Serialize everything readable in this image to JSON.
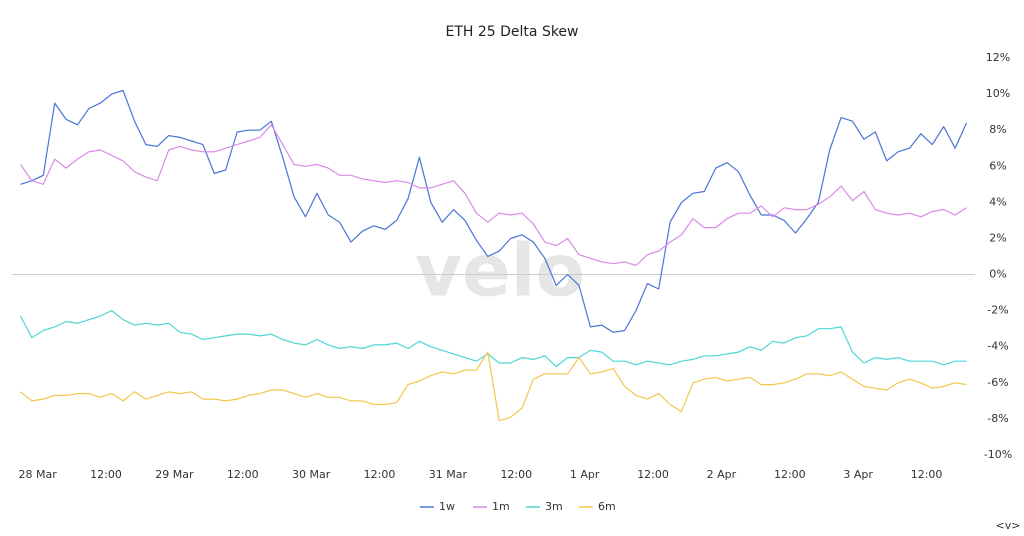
{
  "chart_data": {
    "type": "line",
    "title": "ETH 25 Delta Skew",
    "watermark": "velo",
    "nav_label": "<v>",
    "x": [
      -3,
      -1,
      1,
      3,
      5,
      7,
      9,
      11,
      13,
      15,
      17,
      19,
      21,
      23,
      25,
      27,
      29,
      31,
      33,
      35,
      37,
      39,
      41,
      43,
      45,
      47,
      49,
      51,
      53,
      55,
      57,
      59,
      61,
      63,
      65,
      67,
      69,
      71,
      73,
      75,
      77,
      79,
      81,
      83,
      85,
      87,
      89,
      91,
      93,
      95,
      97,
      99,
      101,
      103,
      105,
      107,
      109,
      111,
      113,
      115,
      117,
      119,
      121,
      123,
      125,
      127,
      129,
      131,
      133,
      135,
      137,
      139,
      141,
      143,
      145,
      147,
      149,
      151,
      153,
      155,
      157,
      159,
      161,
      163
    ],
    "xlim": [
      -4.5,
      164.5
    ],
    "xticks": [
      {
        "value": 0,
        "label": "28 Mar"
      },
      {
        "value": 12,
        "label": "12:00"
      },
      {
        "value": 24,
        "label": "29 Mar"
      },
      {
        "value": 36,
        "label": "12:00"
      },
      {
        "value": 48,
        "label": "30 Mar"
      },
      {
        "value": 60,
        "label": "12:00"
      },
      {
        "value": 72,
        "label": "31 Mar"
      },
      {
        "value": 84,
        "label": "12:00"
      },
      {
        "value": 96,
        "label": "1 Apr"
      },
      {
        "value": 108,
        "label": "12:00"
      },
      {
        "value": 120,
        "label": "2 Apr"
      },
      {
        "value": 132,
        "label": "12:00"
      },
      {
        "value": 144,
        "label": "3 Apr"
      },
      {
        "value": 156,
        "label": "12:00"
      }
    ],
    "ylim": [
      -10,
      12
    ],
    "yticks": [
      {
        "value": -10,
        "label": "-10%"
      },
      {
        "value": -8,
        "label": "-8%"
      },
      {
        "value": -6,
        "label": "-6%"
      },
      {
        "value": -4,
        "label": "-4%"
      },
      {
        "value": -2,
        "label": "-2%"
      },
      {
        "value": 0,
        "label": "0%"
      },
      {
        "value": 2,
        "label": "2%"
      },
      {
        "value": 4,
        "label": "4%"
      },
      {
        "value": 6,
        "label": "6%"
      },
      {
        "value": 8,
        "label": "8%"
      },
      {
        "value": 10,
        "label": "10%"
      },
      {
        "value": 12,
        "label": "12%"
      }
    ],
    "zero_line": true,
    "legend": "bottom",
    "series": [
      {
        "name": "1w",
        "color": "#4a74d6",
        "values": [
          5.0,
          5.2,
          5.5,
          9.5,
          8.6,
          8.3,
          9.2,
          9.5,
          10.0,
          10.2,
          8.5,
          7.2,
          7.1,
          7.7,
          7.6,
          7.4,
          7.2,
          5.6,
          5.8,
          7.9,
          8.0,
          8.0,
          8.5,
          6.5,
          4.3,
          3.2,
          4.5,
          3.3,
          2.9,
          1.8,
          2.4,
          2.7,
          2.5,
          3.0,
          4.2,
          6.5,
          4.0,
          2.9,
          3.6,
          3.0,
          1.9,
          1.0,
          1.3,
          2.0,
          2.2,
          1.8,
          0.9,
          -0.6,
          0.0,
          -0.6,
          -2.9,
          -2.8,
          -3.2,
          -3.1,
          -2.0,
          -0.5,
          -0.8,
          2.9,
          4.0,
          4.5,
          4.6,
          5.9,
          6.2,
          5.7,
          4.4,
          3.3,
          3.3,
          3.0,
          2.3,
          3.1,
          4.0,
          6.9,
          8.7,
          8.5,
          7.5,
          7.9,
          6.3,
          6.8,
          7.0,
          7.8,
          7.2,
          8.2,
          7.0,
          8.4
        ]
      },
      {
        "name": "1m",
        "color": "#d98be8",
        "values": [
          6.1,
          5.2,
          5.0,
          6.4,
          5.9,
          6.4,
          6.8,
          6.9,
          6.6,
          6.3,
          5.7,
          5.4,
          5.2,
          6.9,
          7.1,
          6.9,
          6.8,
          6.8,
          7.0,
          7.2,
          7.4,
          7.6,
          8.3,
          7.2,
          6.1,
          6.0,
          6.1,
          5.9,
          5.5,
          5.5,
          5.3,
          5.2,
          5.1,
          5.2,
          5.1,
          4.8,
          4.8,
          5.0,
          5.2,
          4.5,
          3.4,
          2.9,
          3.4,
          3.3,
          3.4,
          2.8,
          1.8,
          1.6,
          2.0,
          1.1,
          0.9,
          0.7,
          0.6,
          0.7,
          0.5,
          1.1,
          1.3,
          1.8,
          2.2,
          3.1,
          2.6,
          2.6,
          3.1,
          3.4,
          3.4,
          3.8,
          3.2,
          3.7,
          3.6,
          3.6,
          3.9,
          4.3,
          4.9,
          4.1,
          4.6,
          3.6,
          3.4,
          3.3,
          3.4,
          3.2,
          3.5,
          3.6,
          3.3,
          3.7
        ]
      },
      {
        "name": "3m",
        "color": "#4fd6d6",
        "values": [
          -2.3,
          -3.5,
          -3.1,
          -2.9,
          -2.6,
          -2.7,
          -2.5,
          -2.3,
          -2.0,
          -2.5,
          -2.8,
          -2.7,
          -2.8,
          -2.7,
          -3.2,
          -3.3,
          -3.6,
          -3.5,
          -3.4,
          -3.3,
          -3.3,
          -3.4,
          -3.3,
          -3.6,
          -3.8,
          -3.9,
          -3.6,
          -3.9,
          -4.1,
          -4.0,
          -4.1,
          -3.9,
          -3.9,
          -3.8,
          -4.1,
          -3.7,
          -4.0,
          -4.2,
          -4.4,
          -4.6,
          -4.8,
          -4.4,
          -4.9,
          -4.9,
          -4.6,
          -4.7,
          -4.5,
          -5.1,
          -4.6,
          -4.6,
          -4.2,
          -4.3,
          -4.8,
          -4.8,
          -5.0,
          -4.8,
          -4.9,
          -5.0,
          -4.8,
          -4.7,
          -4.5,
          -4.5,
          -4.4,
          -4.3,
          -4.0,
          -4.2,
          -3.7,
          -3.8,
          -3.5,
          -3.4,
          -3.0,
          -3.0,
          -2.9,
          -4.3,
          -4.9,
          -4.6,
          -4.7,
          -4.6,
          -4.8,
          -4.8,
          -4.8,
          -5.0,
          -4.8,
          -4.8
        ]
      },
      {
        "name": "6m",
        "color": "#f2c84b",
        "values": [
          -6.5,
          -7.0,
          -6.9,
          -6.7,
          -6.7,
          -6.6,
          -6.6,
          -6.8,
          -6.6,
          -7.0,
          -6.5,
          -6.9,
          -6.7,
          -6.5,
          -6.6,
          -6.5,
          -6.9,
          -6.9,
          -7.0,
          -6.9,
          -6.7,
          -6.6,
          -6.4,
          -6.4,
          -6.6,
          -6.8,
          -6.6,
          -6.8,
          -6.8,
          -7.0,
          -7.0,
          -7.2,
          -7.2,
          -7.1,
          -6.1,
          -5.9,
          -5.6,
          -5.4,
          -5.5,
          -5.3,
          -5.3,
          -4.3,
          -8.1,
          -7.9,
          -7.4,
          -5.8,
          -5.5,
          -5.5,
          -5.5,
          -4.6,
          -5.5,
          -5.4,
          -5.2,
          -6.2,
          -6.7,
          -6.9,
          -6.6,
          -7.2,
          -7.6,
          -6.0,
          -5.8,
          -5.7,
          -5.9,
          -5.8,
          -5.7,
          -6.1,
          -6.1,
          -6.0,
          -5.8,
          -5.5,
          -5.5,
          -5.6,
          -5.4,
          -5.8,
          -6.2,
          -6.3,
          -6.4,
          -6.0,
          -5.8,
          -6.0,
          -6.3,
          -6.2,
          -6.0,
          -6.1
        ]
      }
    ]
  }
}
